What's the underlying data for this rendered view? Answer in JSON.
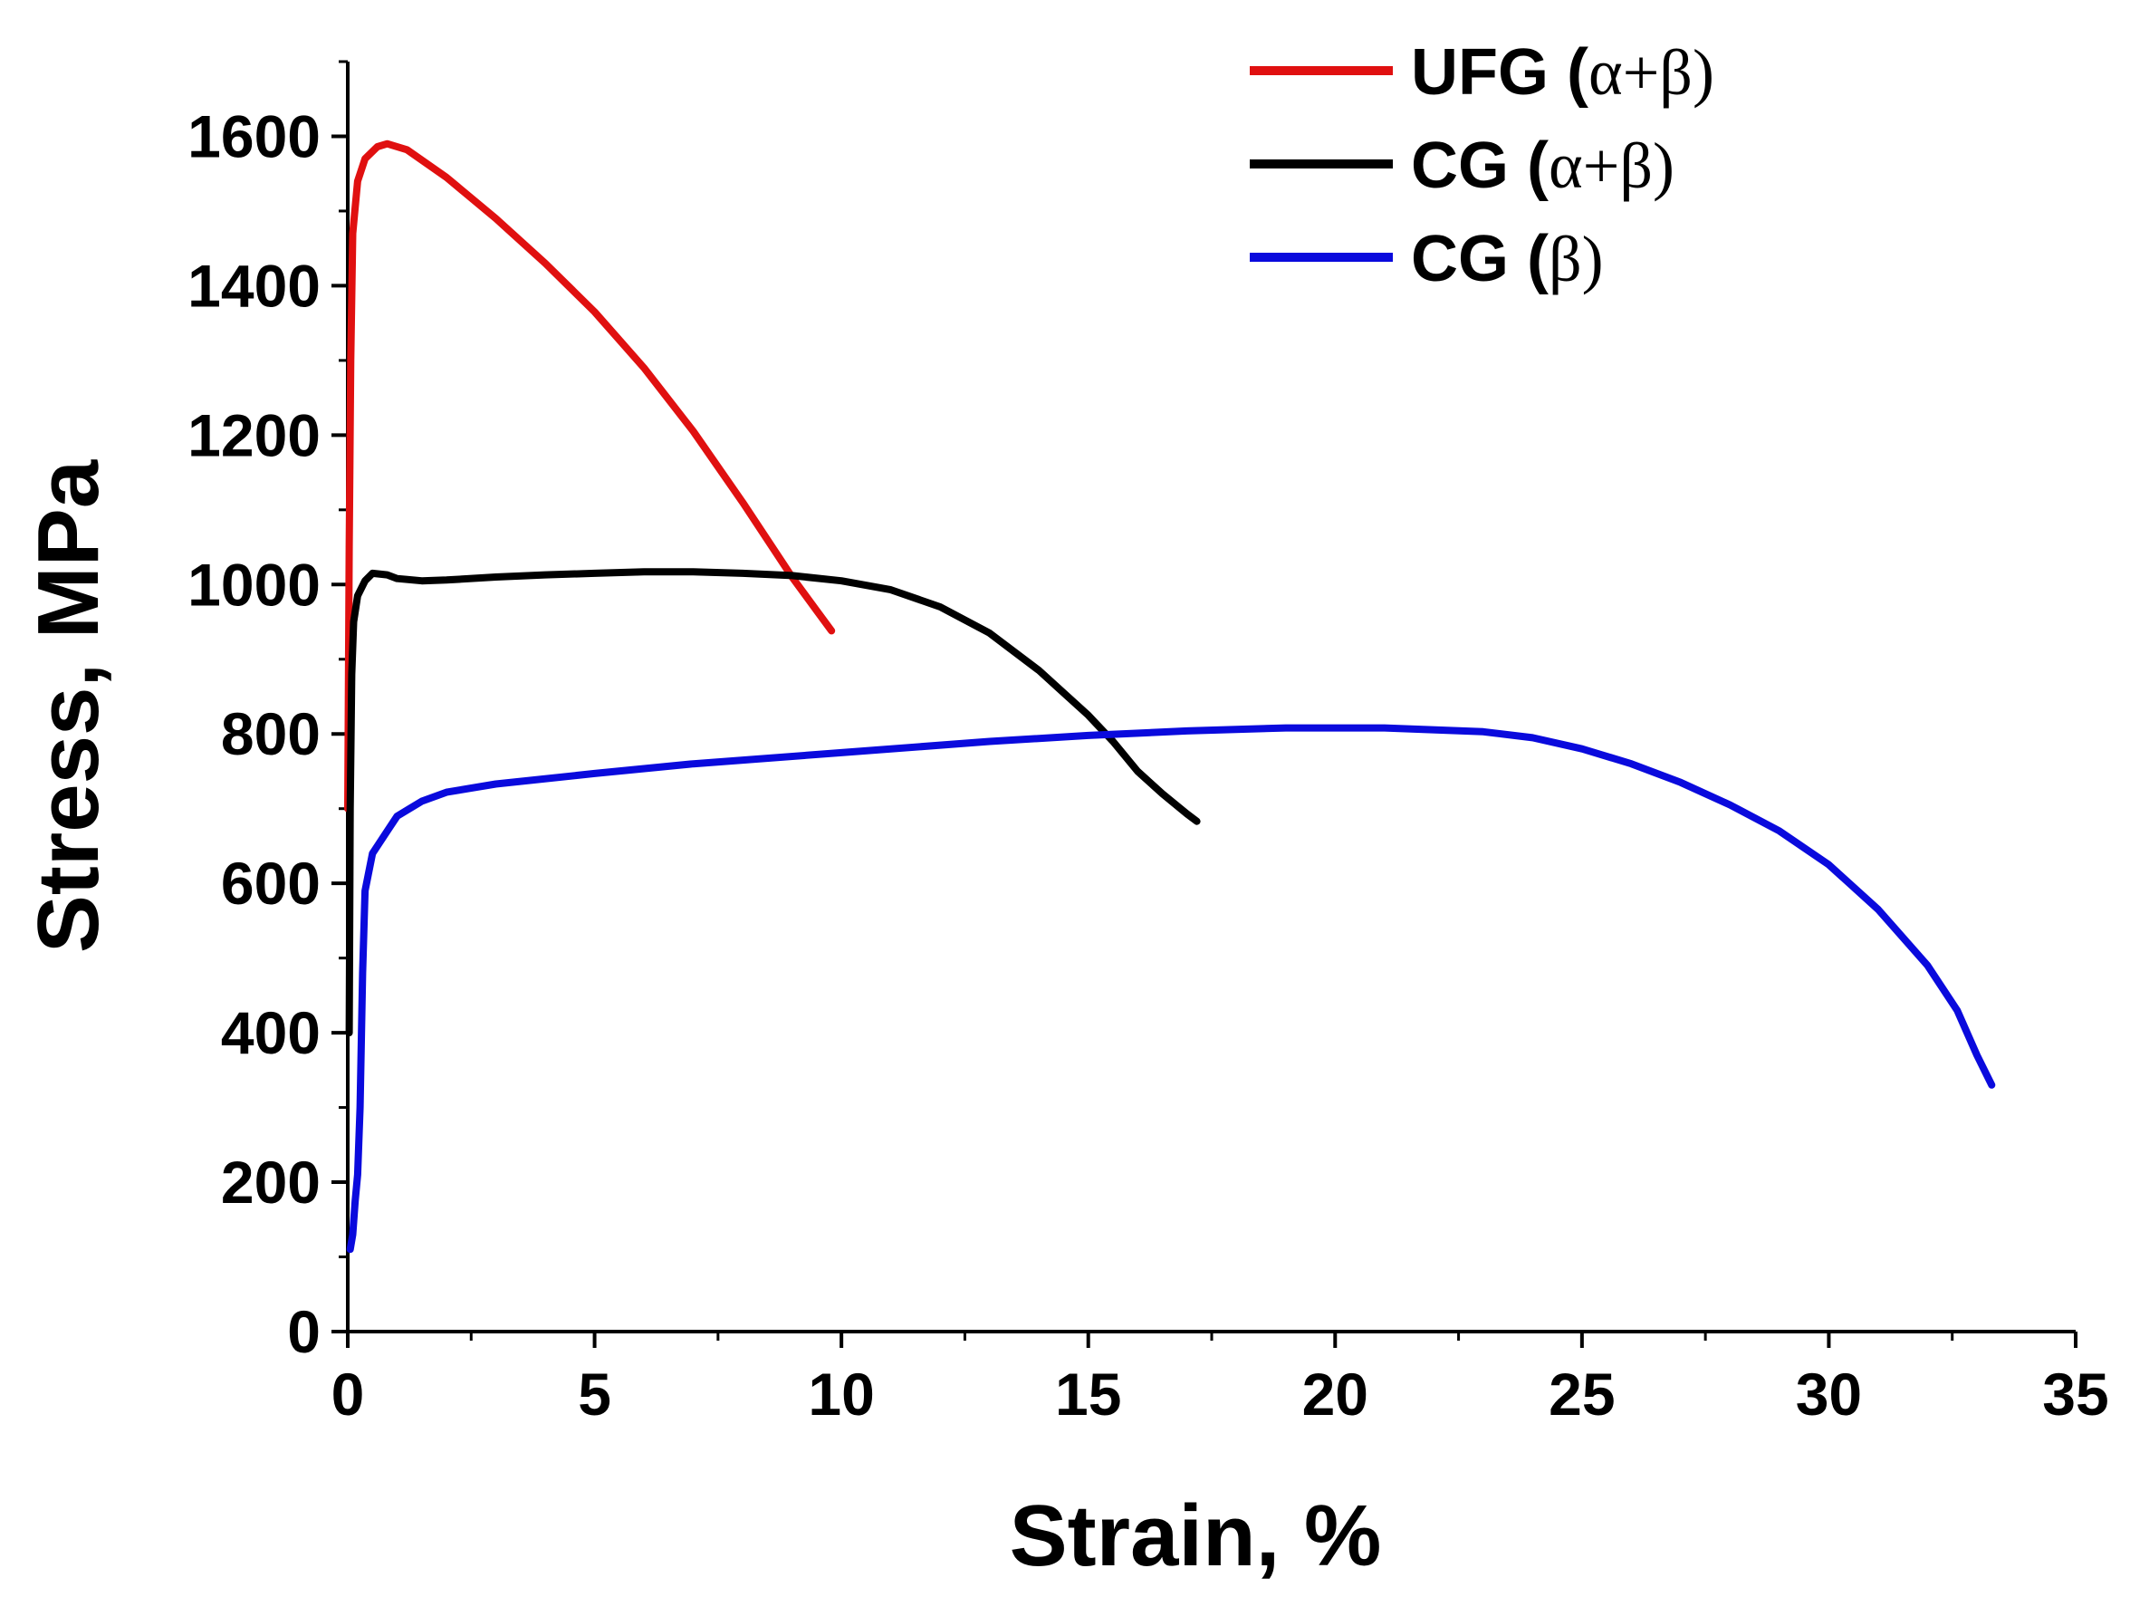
{
  "chart_data": {
    "type": "line",
    "title": "",
    "xlabel": "Strain, %",
    "ylabel": "Stress, MPa",
    "xlim": [
      0,
      35
    ],
    "ylim": [
      0,
      1700
    ],
    "x_ticks": [
      0,
      5,
      10,
      15,
      20,
      25,
      30,
      35
    ],
    "x_tick_labels": [
      "0",
      "5",
      "10",
      "15",
      "20",
      "25",
      "30",
      "35"
    ],
    "y_ticks": [
      0,
      200,
      400,
      600,
      800,
      1000,
      1200,
      1400,
      1600
    ],
    "y_tick_labels": [
      "0",
      "200",
      "400",
      "600",
      "800",
      "1000",
      "1200",
      "1400",
      "1600"
    ],
    "grid": false,
    "legend_position": "top-right",
    "series": [
      {
        "name": "UFG",
        "phase": "α+β",
        "color": "#e01010",
        "points": [
          [
            0,
            700
          ],
          [
            0.03,
            1050
          ],
          [
            0.06,
            1300
          ],
          [
            0.1,
            1470
          ],
          [
            0.2,
            1540
          ],
          [
            0.35,
            1570
          ],
          [
            0.6,
            1586
          ],
          [
            0.8,
            1590
          ],
          [
            1.2,
            1582
          ],
          [
            2,
            1545
          ],
          [
            3,
            1490
          ],
          [
            4,
            1430
          ],
          [
            5,
            1365
          ],
          [
            6,
            1290
          ],
          [
            7,
            1205
          ],
          [
            8,
            1110
          ],
          [
            9,
            1010
          ],
          [
            9.5,
            965
          ],
          [
            9.8,
            938
          ]
        ]
      },
      {
        "name": "CG",
        "phase": "α+β",
        "color": "#000000",
        "points": [
          [
            0.03,
            400
          ],
          [
            0.05,
            700
          ],
          [
            0.08,
            880
          ],
          [
            0.12,
            950
          ],
          [
            0.2,
            985
          ],
          [
            0.35,
            1005
          ],
          [
            0.5,
            1015
          ],
          [
            0.8,
            1013
          ],
          [
            1,
            1008
          ],
          [
            1.5,
            1005
          ],
          [
            2,
            1006
          ],
          [
            3,
            1010
          ],
          [
            4,
            1013
          ],
          [
            5,
            1015
          ],
          [
            6,
            1017
          ],
          [
            7,
            1017
          ],
          [
            8,
            1015
          ],
          [
            9,
            1012
          ],
          [
            10,
            1005
          ],
          [
            11,
            993
          ],
          [
            12,
            970
          ],
          [
            13,
            935
          ],
          [
            14,
            885
          ],
          [
            15,
            825
          ],
          [
            15.5,
            790
          ],
          [
            16,
            750
          ],
          [
            16.5,
            720
          ],
          [
            17,
            693
          ],
          [
            17.2,
            683
          ]
        ]
      },
      {
        "name": "CG",
        "phase": "β",
        "color": "#0a0add",
        "points": [
          [
            0.05,
            110
          ],
          [
            0.1,
            130
          ],
          [
            0.15,
            175
          ],
          [
            0.2,
            210
          ],
          [
            0.25,
            300
          ],
          [
            0.3,
            480
          ],
          [
            0.35,
            590
          ],
          [
            0.5,
            640
          ],
          [
            0.8,
            670
          ],
          [
            1,
            690
          ],
          [
            1.5,
            710
          ],
          [
            2,
            722
          ],
          [
            3,
            733
          ],
          [
            5,
            747
          ],
          [
            7,
            760
          ],
          [
            10,
            775
          ],
          [
            13,
            790
          ],
          [
            15,
            798
          ],
          [
            17,
            804
          ],
          [
            19,
            808
          ],
          [
            21,
            808
          ],
          [
            23,
            803
          ],
          [
            24,
            795
          ],
          [
            25,
            780
          ],
          [
            26,
            760
          ],
          [
            27,
            735
          ],
          [
            28,
            705
          ],
          [
            29,
            670
          ],
          [
            30,
            625
          ],
          [
            31,
            565
          ],
          [
            32,
            490
          ],
          [
            32.6,
            430
          ],
          [
            33,
            370
          ],
          [
            33.3,
            330
          ]
        ]
      }
    ]
  }
}
